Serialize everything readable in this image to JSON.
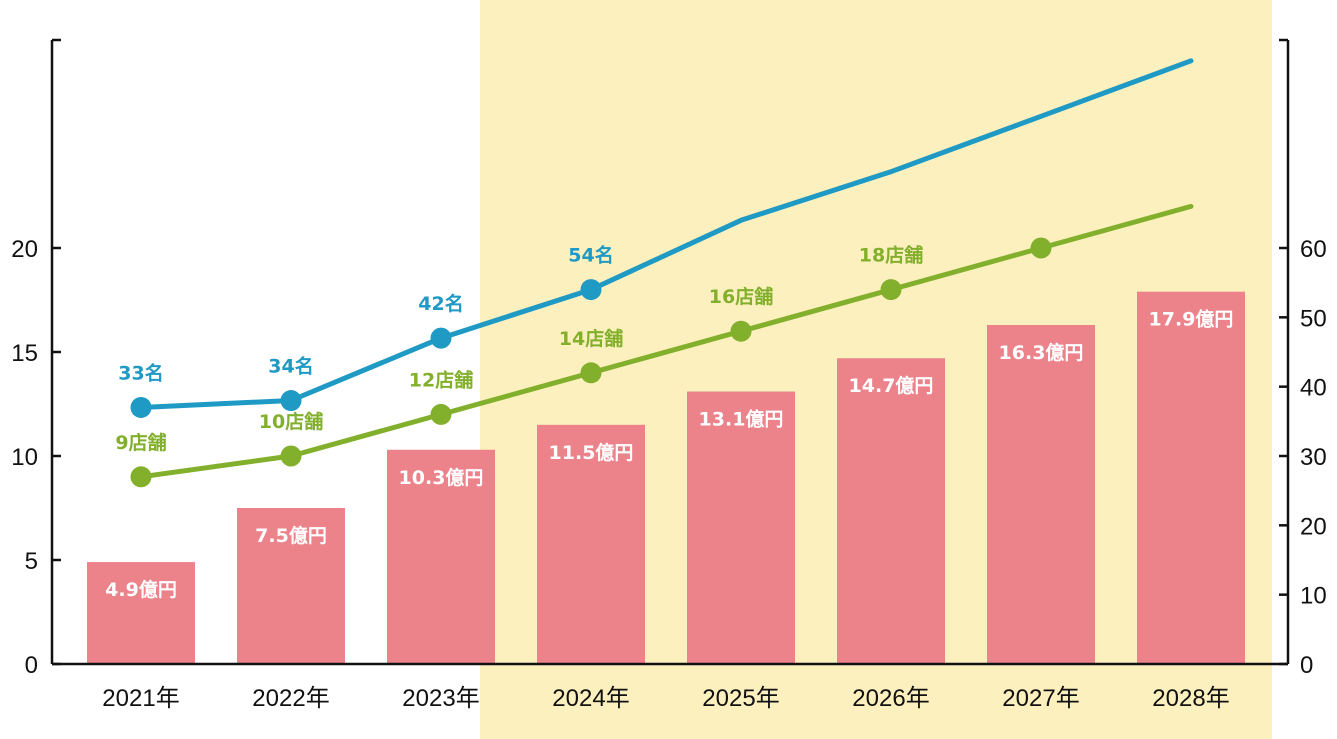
{
  "chart_data": {
    "type": "bar",
    "categories": [
      "2021年",
      "2022年",
      "2023年",
      "2024年",
      "2025年",
      "2026年",
      "2027年",
      "2028年"
    ],
    "highlight": {
      "from_category": "2024年",
      "to_category": "2028年",
      "color": "#fdf0bf"
    },
    "left_axis": {
      "ticks": [
        "0",
        "5",
        "10",
        "15",
        "20"
      ],
      "ylim": [
        0,
        30
      ]
    },
    "right_axis": {
      "ticks": [
        "0",
        "10",
        "20",
        "30",
        "40",
        "50",
        "60"
      ],
      "ylim": [
        0,
        90
      ]
    },
    "series": [
      {
        "type": "bar",
        "axis": "left",
        "color": "#ec828a",
        "values": [
          4.9,
          7.5,
          10.3,
          11.5,
          13.1,
          14.7,
          16.3,
          17.9
        ],
        "labels": [
          "4.9億円",
          "7.5億円",
          "10.3億円",
          "11.5億円",
          "13.1億円",
          "14.7億円",
          "16.3億円",
          "17.9億円"
        ]
      },
      {
        "type": "line",
        "axis": "right",
        "color": "#1e9ac4",
        "values": [
          37,
          38,
          47,
          54,
          64,
          71,
          79,
          87
        ],
        "markers": [
          true,
          true,
          true,
          true,
          false,
          false,
          false,
          false
        ],
        "labels": [
          "33名",
          "34名",
          "42名",
          "54名",
          "",
          "",
          "",
          ""
        ]
      },
      {
        "type": "line",
        "axis": "right",
        "color": "#83b02c",
        "values": [
          27,
          30,
          36,
          42,
          48,
          54,
          60,
          66
        ],
        "markers": [
          true,
          true,
          true,
          true,
          true,
          true,
          true,
          false
        ],
        "labels": [
          "9店舗",
          "10店舗",
          "12店舗",
          "14店舗",
          "16店舗",
          "18店舗",
          "",
          ""
        ]
      }
    ]
  }
}
